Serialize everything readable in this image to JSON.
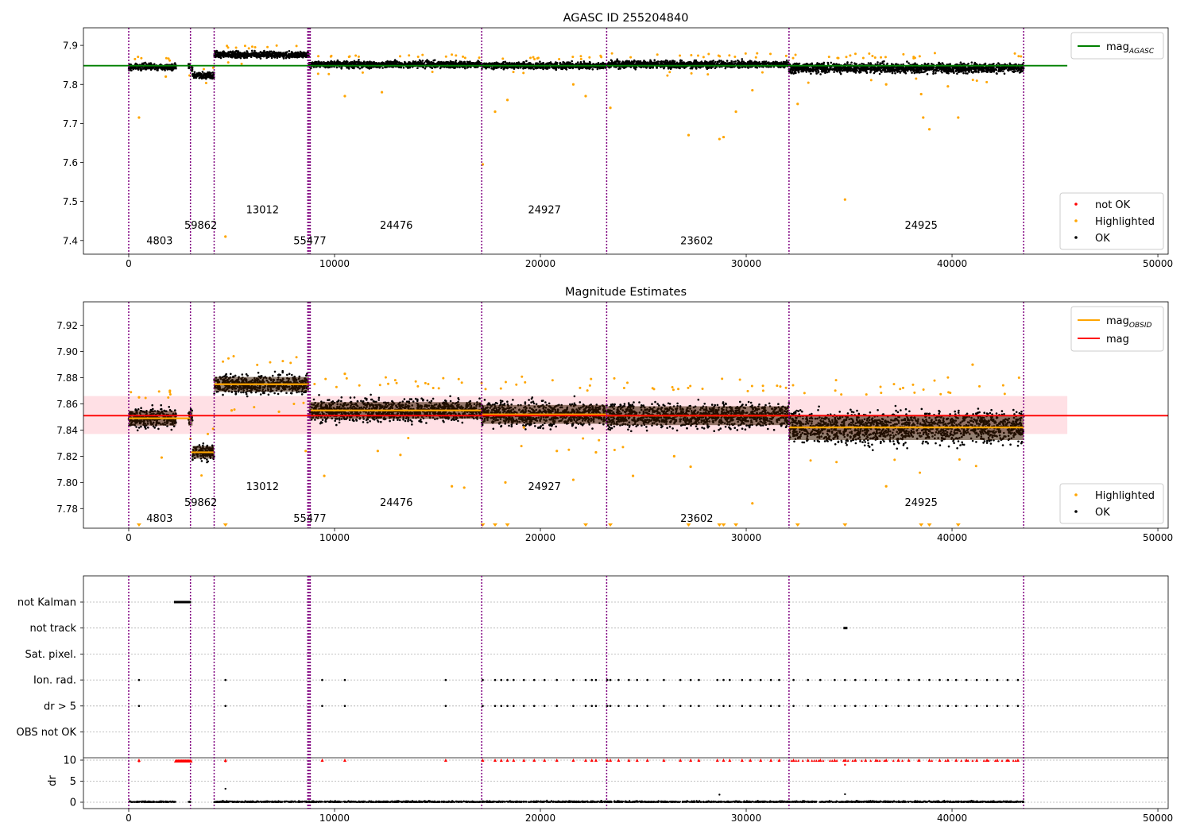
{
  "chart_data": [
    {
      "type": "scatter",
      "title": "AGASC ID 255204840",
      "xlim": [
        -2200,
        50500
      ],
      "ylim": [
        7.365,
        7.945
      ],
      "x_ticks": [
        0,
        10000,
        20000,
        30000,
        40000,
        50000
      ],
      "x_tick_labels": [
        "0",
        "10000",
        "20000",
        "30000",
        "40000",
        "50000"
      ],
      "y_ticks": [
        7.4,
        7.5,
        7.6,
        7.7,
        7.8,
        7.9
      ],
      "y_tick_labels": [
        "7.4",
        "7.5",
        "7.6",
        "7.7",
        "7.8",
        "7.9"
      ],
      "obs_boundaries": [
        0,
        3000,
        4150,
        8700,
        8760,
        8820,
        17150,
        23220,
        32080,
        43480
      ],
      "obs_labels": [
        {
          "x": 1500,
          "y": 7.39,
          "text": "4803"
        },
        {
          "x": 3500,
          "y": 7.43,
          "text": "59862"
        },
        {
          "x": 6500,
          "y": 7.47,
          "text": "13012"
        },
        {
          "x": 8800,
          "y": 7.39,
          "text": "55477"
        },
        {
          "x": 13000,
          "y": 7.43,
          "text": "24476"
        },
        {
          "x": 20200,
          "y": 7.47,
          "text": "24927"
        },
        {
          "x": 27600,
          "y": 7.39,
          "text": "23602"
        },
        {
          "x": 38500,
          "y": 7.43,
          "text": "24925"
        }
      ],
      "segments": [
        {
          "x0": 0,
          "x1": 2300,
          "mean": 7.845,
          "spread": 0.008
        },
        {
          "x0": 2900,
          "x1": 3100,
          "mean": 7.845,
          "spread": 0.008
        },
        {
          "x0": 3100,
          "x1": 4150,
          "mean": 7.823,
          "spread": 0.008
        },
        {
          "x0": 4150,
          "x1": 8760,
          "mean": 7.876,
          "spread": 0.008
        },
        {
          "x0": 8760,
          "x1": 17150,
          "mean": 7.851,
          "spread": 0.008
        },
        {
          "x0": 17150,
          "x1": 23220,
          "mean": 7.848,
          "spread": 0.008
        },
        {
          "x0": 23220,
          "x1": 32080,
          "mean": 7.851,
          "spread": 0.009
        },
        {
          "x0": 32080,
          "x1": 43480,
          "mean": 7.842,
          "spread": 0.012
        }
      ],
      "highlighted": [
        [
          500,
          7.715
        ],
        [
          1800,
          7.82
        ],
        [
          4700,
          7.41
        ],
        [
          10500,
          7.77
        ],
        [
          12300,
          7.78
        ],
        [
          17200,
          7.595
        ],
        [
          17800,
          7.73
        ],
        [
          18400,
          7.76
        ],
        [
          21600,
          7.8
        ],
        [
          22200,
          7.77
        ],
        [
          23400,
          7.74
        ],
        [
          27200,
          7.67
        ],
        [
          28700,
          7.66
        ],
        [
          28900,
          7.665
        ],
        [
          29500,
          7.73
        ],
        [
          30300,
          7.785
        ],
        [
          32500,
          7.75
        ],
        [
          34800,
          7.505
        ],
        [
          36800,
          7.8
        ],
        [
          38500,
          7.775
        ],
        [
          38600,
          7.715
        ],
        [
          38900,
          7.685
        ],
        [
          39800,
          7.795
        ],
        [
          40300,
          7.715
        ]
      ],
      "hlines": [
        {
          "y": 7.848,
          "color": "#008000",
          "x0": -2200,
          "x1": 45600
        }
      ],
      "legend_top": [
        {
          "label": "mag",
          "sub": "AGASC",
          "color": "#008000"
        }
      ],
      "legend_bottom": [
        {
          "label": "not OK",
          "color": "#ff0000"
        },
        {
          "label": "Highlighted",
          "color": "#ffa500"
        },
        {
          "label": "OK",
          "color": "#000000"
        }
      ]
    },
    {
      "type": "scatter",
      "title": "Magnitude Estimates",
      "xlim": [
        -2200,
        50500
      ],
      "ylim": [
        7.765,
        7.938
      ],
      "x_ticks": [
        0,
        10000,
        20000,
        30000,
        40000,
        50000
      ],
      "x_tick_labels": [
        "0",
        "10000",
        "20000",
        "30000",
        "40000",
        "50000"
      ],
      "y_ticks": [
        7.78,
        7.8,
        7.82,
        7.84,
        7.86,
        7.88,
        7.9,
        7.92
      ],
      "y_tick_labels": [
        "7.78",
        "7.80",
        "7.82",
        "7.84",
        "7.86",
        "7.88",
        "7.90",
        "7.92"
      ],
      "obs_boundaries": [
        0,
        3000,
        4150,
        8700,
        8760,
        8820,
        17150,
        23220,
        32080,
        43480
      ],
      "obs_labels": [
        {
          "x": 1500,
          "y": 7.77,
          "text": "4803"
        },
        {
          "x": 3500,
          "y": 7.782,
          "text": "59862"
        },
        {
          "x": 6500,
          "y": 7.794,
          "text": "13012"
        },
        {
          "x": 8800,
          "y": 7.77,
          "text": "55477"
        },
        {
          "x": 13000,
          "y": 7.782,
          "text": "24476"
        },
        {
          "x": 20200,
          "y": 7.794,
          "text": "24927"
        },
        {
          "x": 27600,
          "y": 7.77,
          "text": "23602"
        },
        {
          "x": 38500,
          "y": 7.782,
          "text": "24925"
        }
      ],
      "segments": [
        {
          "x0": 0,
          "x1": 2300,
          "mean": 7.849,
          "spread": 0.007
        },
        {
          "x0": 2900,
          "x1": 3100,
          "mean": 7.849,
          "spread": 0.007
        },
        {
          "x0": 3100,
          "x1": 4150,
          "mean": 7.823,
          "spread": 0.006
        },
        {
          "x0": 4150,
          "x1": 8760,
          "mean": 7.875,
          "spread": 0.007
        },
        {
          "x0": 8760,
          "x1": 17150,
          "mean": 7.855,
          "spread": 0.008
        },
        {
          "x0": 17150,
          "x1": 23220,
          "mean": 7.852,
          "spread": 0.009
        },
        {
          "x0": 23220,
          "x1": 32080,
          "mean": 7.851,
          "spread": 0.009
        },
        {
          "x0": 32080,
          "x1": 43480,
          "mean": 7.842,
          "spread": 0.012
        }
      ],
      "obs_means": [
        {
          "x0": 0,
          "x1": 3000,
          "y": 7.849
        },
        {
          "x0": 3000,
          "x1": 4150,
          "y": 7.823
        },
        {
          "x0": 4150,
          "x1": 8760,
          "y": 7.875
        },
        {
          "x0": 8820,
          "x1": 17150,
          "y": 7.855
        },
        {
          "x0": 17150,
          "x1": 23220,
          "y": 7.852
        },
        {
          "x0": 23220,
          "x1": 32080,
          "y": 7.851
        },
        {
          "x0": 32080,
          "x1": 43480,
          "y": 7.842
        }
      ],
      "band": {
        "y0": 7.837,
        "y1": 7.866,
        "x0": -2200,
        "x1": 45600
      },
      "highlighted": [
        [
          500,
          7.865
        ],
        [
          1600,
          7.819
        ],
        [
          2000,
          7.87
        ],
        [
          5000,
          7.855
        ],
        [
          7300,
          7.854
        ],
        [
          8600,
          7.824
        ],
        [
          9500,
          7.805
        ],
        [
          10500,
          7.883
        ],
        [
          12100,
          7.824
        ],
        [
          13200,
          7.821
        ],
        [
          15700,
          7.797
        ],
        [
          16300,
          7.796
        ],
        [
          18300,
          7.8
        ],
        [
          19200,
          7.842
        ],
        [
          20800,
          7.824
        ],
        [
          21600,
          7.802
        ],
        [
          22700,
          7.823
        ],
        [
          24500,
          7.805
        ],
        [
          26500,
          7.82
        ],
        [
          27300,
          7.812
        ],
        [
          30300,
          7.784
        ],
        [
          36800,
          7.797
        ],
        [
          41000,
          7.89
        ]
      ],
      "arrows": [
        500,
        4700,
        17200,
        17800,
        18400,
        22200,
        23400,
        27200,
        28700,
        28900,
        29500,
        32500,
        34800,
        38500,
        38900,
        40300
      ],
      "hlines": [
        {
          "y": 7.851,
          "color": "#ff0000",
          "x0": -2200,
          "x1": 50500
        }
      ],
      "legend_top": [
        {
          "label": "mag",
          "sub": "OBSID",
          "color": "#ffa500"
        },
        {
          "label": "mag",
          "sub": "",
          "color": "#ff0000"
        }
      ],
      "legend_bottom": [
        {
          "label": "Highlighted",
          "color": "#ffa500"
        },
        {
          "label": "OK",
          "color": "#000000"
        }
      ]
    },
    {
      "type": "scatter",
      "title": "",
      "xlim": [
        -2200,
        50500
      ],
      "flag_rows": [
        "not Kalman",
        "not track",
        "Sat. pixel.",
        "Ion. rad.",
        "dr > 5",
        "OBS not OK"
      ],
      "dr_ticks": [
        0,
        5,
        10
      ],
      "dr_tick_labels": [
        "0",
        "5",
        "10"
      ],
      "dr_ylabel": "dr",
      "x_ticks": [
        0,
        10000,
        20000,
        30000,
        40000,
        50000
      ],
      "x_tick_labels": [
        "0",
        "10000",
        "20000",
        "30000",
        "40000",
        "50000"
      ],
      "obs_boundaries": [
        0,
        3000,
        4150,
        8700,
        8760,
        8820,
        17150,
        23220,
        32080,
        43480
      ],
      "not_kalman_range": [
        2200,
        2950
      ],
      "not_track_x": [
        34800
      ],
      "ion_rad_x": [
        500,
        4700,
        9400,
        10500,
        15400,
        17200,
        17800,
        18100,
        18400,
        18700,
        19200,
        19700,
        20200,
        20800,
        21600,
        22200,
        22500,
        22700,
        23250,
        23400,
        23800,
        24300,
        24700,
        25200,
        26000,
        26800,
        27300,
        27700,
        28600,
        28900,
        29200,
        29800,
        30200,
        30700,
        31200,
        31600,
        32300,
        33000,
        33600,
        34300,
        34800,
        35300,
        35800,
        36300,
        36800,
        37400,
        37900,
        38400,
        38900,
        39400,
        39800,
        40200,
        40700,
        41200,
        41700,
        42200,
        42700,
        43200
      ],
      "dr_outliers": [
        [
          500,
          9.7
        ],
        [
          4700,
          9.7
        ],
        [
          4700,
          3.2
        ],
        [
          28700,
          1.8
        ],
        [
          34800,
          8.9
        ],
        [
          34800,
          1.9
        ]
      ],
      "dr_cap": 10
    }
  ]
}
